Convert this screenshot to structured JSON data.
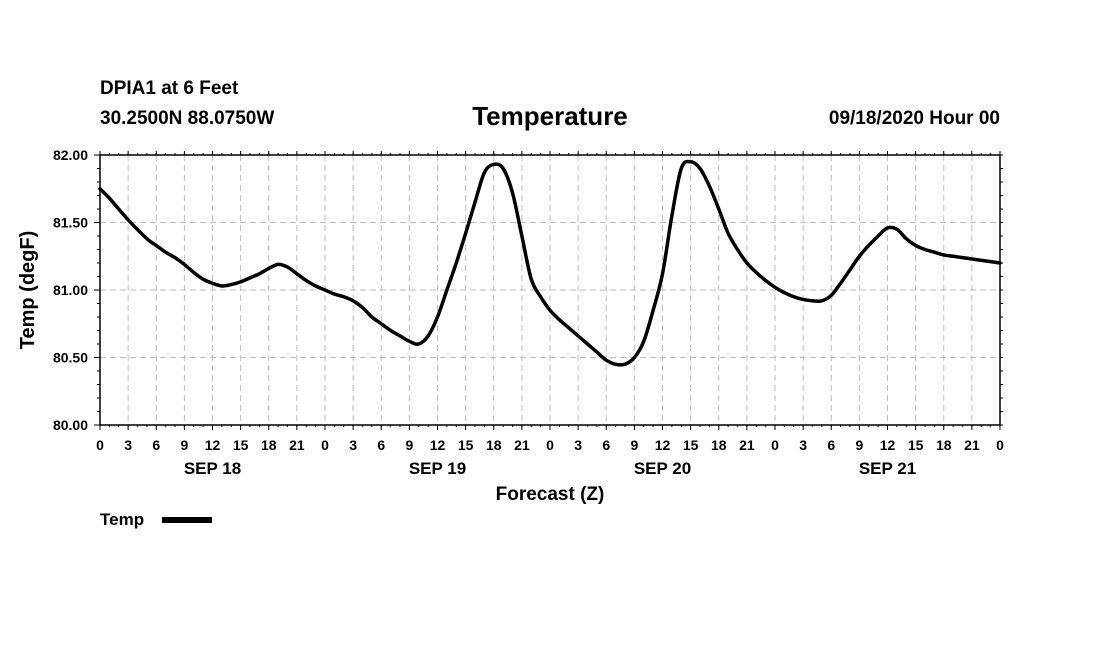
{
  "header": {
    "station": "DPIA1 at 6 Feet",
    "coords": "30.2500N 88.0750W",
    "title": "Temperature",
    "datetime": "09/18/2020 Hour 00"
  },
  "chart_data": {
    "type": "line",
    "title": "Temperature",
    "xlabel": "Forecast (Z)",
    "ylabel": "Temp (degF)",
    "ylim": [
      80.0,
      82.0
    ],
    "xlim_hours": [
      0,
      96
    ],
    "grid": true,
    "y_ticks": [
      "80.00",
      "80.50",
      "81.00",
      "81.50",
      "82.00"
    ],
    "y_tick_values": [
      80.0,
      80.5,
      81.0,
      81.5,
      82.0
    ],
    "x_ticks": [
      "0",
      "3",
      "6",
      "9",
      "12",
      "15",
      "18",
      "21",
      "0",
      "3",
      "6",
      "9",
      "12",
      "15",
      "18",
      "21",
      "0",
      "3",
      "6",
      "9",
      "12",
      "15",
      "18",
      "21",
      "0",
      "3",
      "6",
      "9",
      "12",
      "15",
      "18",
      "21",
      "0"
    ],
    "x_tick_hours": [
      0,
      3,
      6,
      9,
      12,
      15,
      18,
      21,
      24,
      27,
      30,
      33,
      36,
      39,
      42,
      45,
      48,
      51,
      54,
      57,
      60,
      63,
      66,
      69,
      72,
      75,
      78,
      81,
      84,
      87,
      90,
      93,
      96
    ],
    "day_labels": [
      {
        "label": "SEP 18",
        "hour": 12
      },
      {
        "label": "SEP 19",
        "hour": 36
      },
      {
        "label": "SEP 20",
        "hour": 60
      },
      {
        "label": "SEP 21",
        "hour": 84
      }
    ],
    "legend": "bottom-left",
    "series": [
      {
        "name": "Temp",
        "color": "#000000",
        "x": [
          0,
          1,
          3,
          5,
          6,
          7,
          8,
          9,
          10,
          11,
          12,
          13,
          14,
          15,
          16,
          17,
          18,
          19,
          20,
          21,
          22,
          23,
          24,
          25,
          26,
          27,
          28,
          29,
          30,
          31,
          32,
          33,
          34,
          35,
          36,
          37,
          38,
          39,
          40,
          41,
          42,
          43,
          44,
          45,
          46,
          47,
          48,
          49,
          50,
          51,
          52,
          53,
          54,
          55,
          56,
          57,
          58,
          59,
          60,
          61,
          62,
          63,
          64,
          65,
          66,
          67,
          68,
          69,
          70,
          71,
          72,
          73,
          74,
          75,
          76,
          77,
          78,
          79,
          80,
          81,
          82,
          83,
          84,
          85,
          86,
          87,
          88,
          89,
          90,
          91,
          92,
          93,
          94,
          95,
          96
        ],
        "values": [
          81.75,
          81.68,
          81.52,
          81.38,
          81.33,
          81.28,
          81.24,
          81.19,
          81.13,
          81.08,
          81.05,
          81.03,
          81.04,
          81.06,
          81.09,
          81.12,
          81.16,
          81.19,
          81.17,
          81.12,
          81.07,
          81.03,
          81.0,
          80.97,
          80.95,
          80.92,
          80.87,
          80.8,
          80.75,
          80.7,
          80.66,
          80.62,
          80.6,
          80.66,
          80.8,
          81.0,
          81.2,
          81.42,
          81.65,
          81.87,
          81.93,
          81.9,
          81.72,
          81.4,
          81.08,
          80.95,
          80.85,
          80.78,
          80.72,
          80.66,
          80.6,
          80.54,
          80.48,
          80.45,
          80.45,
          80.5,
          80.62,
          80.85,
          81.12,
          81.55,
          81.9,
          81.95,
          81.9,
          81.77,
          81.6,
          81.42,
          81.3,
          81.2,
          81.13,
          81.07,
          81.02,
          80.98,
          80.95,
          80.93,
          80.92,
          80.92,
          80.96,
          81.05,
          81.15,
          81.25,
          81.33,
          81.4,
          81.46,
          81.45,
          81.38,
          81.33,
          81.3,
          81.28,
          81.26,
          81.25,
          81.24,
          81.23,
          81.22,
          81.21,
          81.2
        ]
      }
    ]
  }
}
